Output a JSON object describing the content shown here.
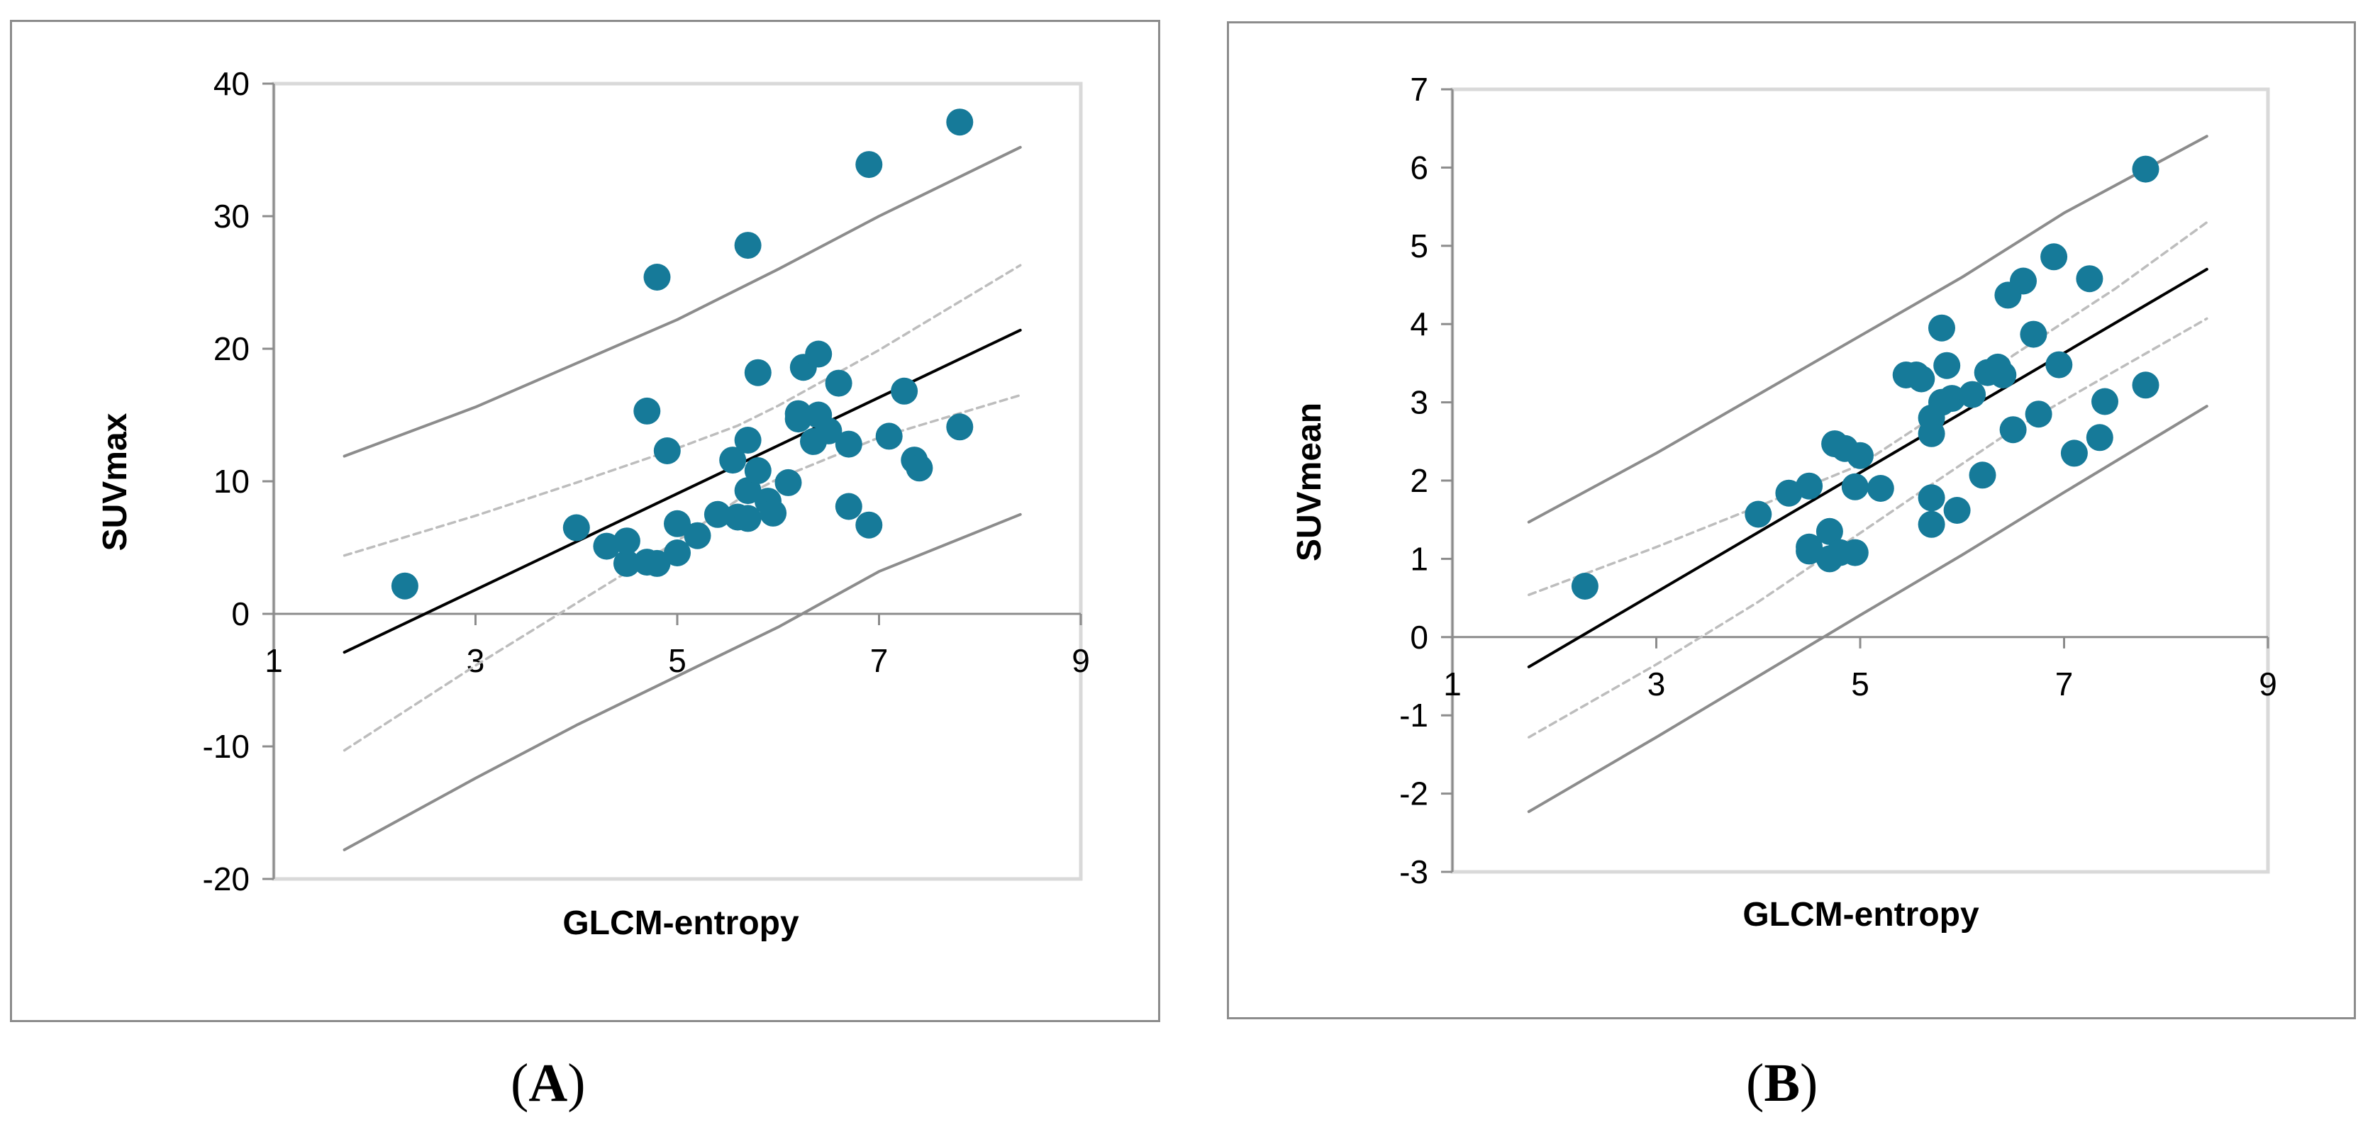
{
  "colors": {
    "point": "#167a99",
    "fit_line": "#000000",
    "confidence_band": "#bdbdbd",
    "prediction_band": "#8c8c8c",
    "axis": "#8c8c8c",
    "plot_border": "#d9d9d9"
  },
  "captions": {
    "a": {
      "open": "(",
      "letter": "A",
      "close": ")"
    },
    "b": {
      "open": "(",
      "letter": "B",
      "close": ")"
    }
  },
  "chart_data": [
    {
      "id": "A",
      "type": "scatter",
      "title": "",
      "xlabel": "GLCM-entropy",
      "ylabel": "SUVmax",
      "xlim": [
        1,
        9
      ],
      "ylim": [
        -20,
        40
      ],
      "xticks": [
        1,
        3,
        5,
        7,
        9
      ],
      "yticks": [
        -20,
        -10,
        0,
        10,
        20,
        30,
        40
      ],
      "grid": false,
      "legend": "none",
      "series": [
        {
          "points": [
            [
              2.3,
              2.1
            ],
            [
              4.0,
              6.5
            ],
            [
              4.3,
              5.1
            ],
            [
              4.5,
              3.8
            ],
            [
              4.5,
              5.5
            ],
            [
              4.7,
              3.9
            ],
            [
              4.7,
              15.3
            ],
            [
              4.8,
              3.8
            ],
            [
              4.8,
              25.4
            ],
            [
              4.9,
              12.3
            ],
            [
              5.0,
              6.8
            ],
            [
              5.0,
              4.6
            ],
            [
              5.2,
              5.9
            ],
            [
              5.4,
              7.5
            ],
            [
              5.55,
              11.6
            ],
            [
              5.6,
              7.3
            ],
            [
              5.7,
              7.2
            ],
            [
              5.7,
              13.1
            ],
            [
              5.7,
              9.3
            ],
            [
              5.7,
              27.8
            ],
            [
              5.8,
              10.8
            ],
            [
              5.8,
              18.2
            ],
            [
              5.9,
              8.5
            ],
            [
              5.95,
              7.6
            ],
            [
              6.1,
              9.9
            ],
            [
              6.2,
              14.7
            ],
            [
              6.2,
              15.1
            ],
            [
              6.25,
              18.6
            ],
            [
              6.35,
              13.0
            ],
            [
              6.4,
              19.6
            ],
            [
              6.4,
              15.0
            ],
            [
              6.5,
              13.8
            ],
            [
              6.6,
              17.4
            ],
            [
              6.7,
              12.8
            ],
            [
              6.7,
              8.1
            ],
            [
              6.9,
              6.7
            ],
            [
              6.9,
              33.9
            ],
            [
              7.1,
              13.4
            ],
            [
              7.25,
              16.8
            ],
            [
              7.35,
              11.6
            ],
            [
              7.4,
              11.0
            ],
            [
              7.8,
              14.1
            ],
            [
              7.8,
              37.1
            ]
          ]
        }
      ],
      "regression_line": [
        [
          1.7,
          -2.9
        ],
        [
          8.4,
          21.4
        ]
      ],
      "confidence_band_upper": [
        [
          1.7,
          4.4
        ],
        [
          3.0,
          7.4
        ],
        [
          4.0,
          9.9
        ],
        [
          5.0,
          12.5
        ],
        [
          5.6,
          14.2
        ],
        [
          6.0,
          15.7
        ],
        [
          7.0,
          19.9
        ],
        [
          8.4,
          26.3
        ]
      ],
      "confidence_band_lower": [
        [
          1.7,
          -10.3
        ],
        [
          3.0,
          -3.9
        ],
        [
          4.0,
          0.8
        ],
        [
          5.0,
          5.5
        ],
        [
          5.6,
          8.6
        ],
        [
          6.0,
          10.2
        ],
        [
          7.0,
          13.3
        ],
        [
          8.4,
          16.5
        ]
      ],
      "prediction_band_upper": [
        [
          1.7,
          11.9
        ],
        [
          3.0,
          15.6
        ],
        [
          4.0,
          18.9
        ],
        [
          5.0,
          22.2
        ],
        [
          6.0,
          26.0
        ],
        [
          7.0,
          30.0
        ],
        [
          8.4,
          35.2
        ]
      ],
      "prediction_band_lower": [
        [
          1.7,
          -17.8
        ],
        [
          3.0,
          -12.4
        ],
        [
          4.0,
          -8.4
        ],
        [
          5.0,
          -4.7
        ],
        [
          6.0,
          -1.0
        ],
        [
          7.0,
          3.2
        ],
        [
          8.4,
          7.5
        ]
      ]
    },
    {
      "id": "B",
      "type": "scatter",
      "title": "",
      "xlabel": "GLCM-entropy",
      "ylabel": "SUVmean",
      "xlim": [
        1,
        9
      ],
      "ylim": [
        -3,
        7
      ],
      "xticks": [
        1,
        3,
        5,
        7,
        9
      ],
      "yticks": [
        -3,
        -2,
        -1,
        0,
        1,
        2,
        3,
        4,
        5,
        6,
        7
      ],
      "grid": false,
      "legend": "none",
      "series": [
        {
          "points": [
            [
              2.3,
              0.65
            ],
            [
              4.0,
              1.57
            ],
            [
              4.3,
              1.84
            ],
            [
              4.5,
              1.93
            ],
            [
              4.5,
              1.15
            ],
            [
              4.5,
              1.1
            ],
            [
              4.7,
              1.35
            ],
            [
              4.7,
              1.0
            ],
            [
              4.75,
              2.47
            ],
            [
              4.8,
              1.08
            ],
            [
              4.85,
              2.41
            ],
            [
              4.95,
              1.92
            ],
            [
              4.95,
              1.08
            ],
            [
              5.0,
              2.32
            ],
            [
              5.2,
              1.9
            ],
            [
              5.45,
              3.35
            ],
            [
              5.55,
              3.35
            ],
            [
              5.6,
              3.3
            ],
            [
              5.7,
              2.8
            ],
            [
              5.7,
              2.6
            ],
            [
              5.7,
              1.78
            ],
            [
              5.7,
              1.44
            ],
            [
              5.8,
              3.95
            ],
            [
              5.8,
              3.0
            ],
            [
              5.85,
              3.47
            ],
            [
              5.9,
              3.05
            ],
            [
              5.95,
              1.62
            ],
            [
              6.1,
              3.1
            ],
            [
              6.2,
              2.07
            ],
            [
              6.25,
              3.38
            ],
            [
              6.35,
              3.45
            ],
            [
              6.4,
              3.35
            ],
            [
              6.45,
              4.37
            ],
            [
              6.5,
              2.65
            ],
            [
              6.6,
              4.55
            ],
            [
              6.7,
              3.87
            ],
            [
              6.75,
              2.85
            ],
            [
              6.9,
              4.86
            ],
            [
              6.95,
              3.48
            ],
            [
              7.1,
              2.35
            ],
            [
              7.25,
              4.58
            ],
            [
              7.35,
              2.55
            ],
            [
              7.4,
              3.01
            ],
            [
              7.8,
              5.98
            ],
            [
              7.8,
              3.22
            ]
          ]
        }
      ],
      "regression_line": [
        [
          1.75,
          -0.38
        ],
        [
          8.4,
          4.7
        ]
      ],
      "confidence_band_upper": [
        [
          1.75,
          0.54
        ],
        [
          3.0,
          1.15
        ],
        [
          4.0,
          1.67
        ],
        [
          5.0,
          2.2
        ],
        [
          5.7,
          2.8
        ],
        [
          6.5,
          3.6
        ],
        [
          7.5,
          4.45
        ],
        [
          8.4,
          5.3
        ]
      ],
      "confidence_band_lower": [
        [
          1.75,
          -1.28
        ],
        [
          3.0,
          -0.35
        ],
        [
          4.0,
          0.45
        ],
        [
          5.0,
          1.33
        ],
        [
          5.7,
          1.95
        ],
        [
          6.5,
          2.65
        ],
        [
          7.5,
          3.4
        ],
        [
          8.4,
          4.07
        ]
      ],
      "prediction_band_upper": [
        [
          1.75,
          1.47
        ],
        [
          3.0,
          2.35
        ],
        [
          4.0,
          3.1
        ],
        [
          5.0,
          3.85
        ],
        [
          6.0,
          4.6
        ],
        [
          7.0,
          5.42
        ],
        [
          8.4,
          6.4
        ]
      ],
      "prediction_band_lower": [
        [
          1.75,
          -2.23
        ],
        [
          3.0,
          -1.28
        ],
        [
          4.0,
          -0.5
        ],
        [
          5.0,
          0.28
        ],
        [
          6.0,
          1.05
        ],
        [
          7.0,
          1.85
        ],
        [
          8.4,
          2.95
        ]
      ]
    }
  ]
}
